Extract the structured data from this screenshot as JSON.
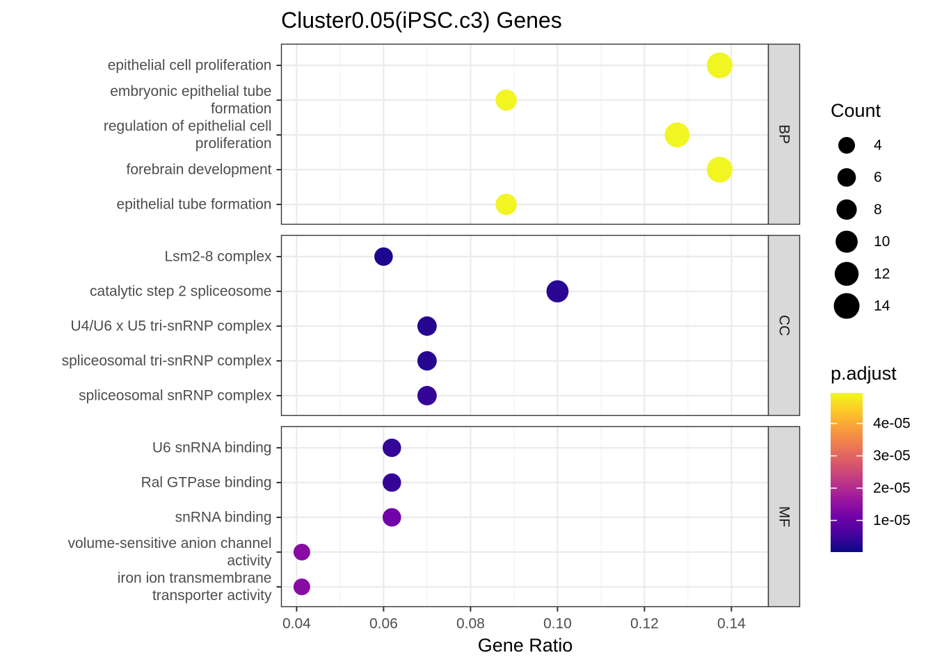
{
  "chart_data": {
    "type": "scatter",
    "title": "Cluster0.05(iPSC.c3) Genes",
    "xlabel": "Gene Ratio",
    "ylabel": "",
    "xlim": [
      0.0365,
      0.1485
    ],
    "x_ticks": [
      0.04,
      0.06,
      0.08,
      0.1,
      0.12,
      0.14
    ],
    "x_tick_labels": [
      "0.04",
      "0.06",
      "0.08",
      "0.10",
      "0.12",
      "0.14"
    ],
    "grid": true,
    "facets": [
      {
        "name": "BP",
        "terms": [
          {
            "label": [
              "epithelial cell proliferation"
            ],
            "gene_ratio": 0.1373,
            "count": 14,
            "p_adjust": 4.9e-05
          },
          {
            "label": [
              "embryonic epithelial tube",
              "formation"
            ],
            "gene_ratio": 0.0882,
            "count": 9,
            "p_adjust": 4.9e-05
          },
          {
            "label": [
              "regulation of epithelial cell",
              "proliferation"
            ],
            "gene_ratio": 0.1275,
            "count": 13,
            "p_adjust": 4.9e-05
          },
          {
            "label": [
              "forebrain development"
            ],
            "gene_ratio": 0.1373,
            "count": 14,
            "p_adjust": 4.9e-05
          },
          {
            "label": [
              "epithelial tube formation"
            ],
            "gene_ratio": 0.0882,
            "count": 9,
            "p_adjust": 4.9e-05
          }
        ]
      },
      {
        "name": "CC",
        "terms": [
          {
            "label": [
              "Lsm2-8 complex"
            ],
            "gene_ratio": 0.06,
            "count": 6,
            "p_adjust": 1.5e-06
          },
          {
            "label": [
              "catalytic step 2 spliceosome"
            ],
            "gene_ratio": 0.1,
            "count": 10,
            "p_adjust": 3e-06
          },
          {
            "label": [
              "U4/U6 x U5 tri-snRNP complex"
            ],
            "gene_ratio": 0.07,
            "count": 7,
            "p_adjust": 2.5e-06
          },
          {
            "label": [
              "spliceosomal tri-snRNP complex"
            ],
            "gene_ratio": 0.07,
            "count": 7,
            "p_adjust": 2.5e-06
          },
          {
            "label": [
              "spliceosomal snRNP complex"
            ],
            "gene_ratio": 0.07,
            "count": 7,
            "p_adjust": 4e-06
          }
        ]
      },
      {
        "name": "MF",
        "terms": [
          {
            "label": [
              "U6 snRNA binding"
            ],
            "gene_ratio": 0.0619,
            "count": 6,
            "p_adjust": 4e-06
          },
          {
            "label": [
              "Ral GTPase binding"
            ],
            "gene_ratio": 0.0619,
            "count": 6,
            "p_adjust": 4e-06
          },
          {
            "label": [
              "snRNA binding"
            ],
            "gene_ratio": 0.0619,
            "count": 6,
            "p_adjust": 1.1e-05
          },
          {
            "label": [
              "volume-sensitive anion channel",
              "activity"
            ],
            "gene_ratio": 0.0412,
            "count": 4,
            "p_adjust": 1.4e-05
          },
          {
            "label": [
              "iron ion transmembrane",
              "transporter activity"
            ],
            "gene_ratio": 0.0412,
            "count": 4,
            "p_adjust": 1.4e-05
          }
        ]
      }
    ],
    "size_legend": {
      "title": "Count",
      "values": [
        4,
        6,
        8,
        10,
        12,
        14
      ],
      "labels": [
        "4",
        "6",
        "8",
        "10",
        "12",
        "14"
      ]
    },
    "color_legend": {
      "title": "p.adjust",
      "range": [
        2e-07,
        4.95e-05
      ],
      "ticks": [
        1e-05,
        2e-05,
        3e-05,
        4e-05
      ],
      "tick_labels": [
        "1e-05",
        "2e-05",
        "3e-05",
        "4e-05"
      ],
      "colors": [
        "#0D0887",
        "#46039F",
        "#7201A8",
        "#9C179E",
        "#BD3786",
        "#D8576B",
        "#ED7953",
        "#FA9E3B",
        "#FDC926",
        "#F0F921"
      ]
    },
    "legend_position": "right"
  }
}
